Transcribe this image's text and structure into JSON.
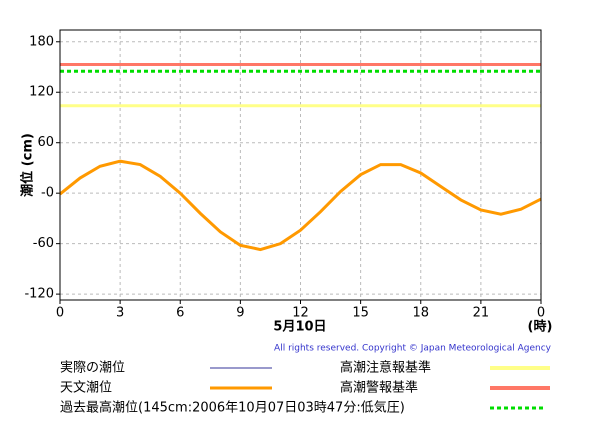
{
  "chart_data": {
    "type": "line",
    "y_label": "潮位 (cm)",
    "x_label": "5月10日",
    "x_unit": "(時)",
    "copyright": "All rights reserved. Copyright © Japan Meteorological Agency",
    "x": [
      0,
      1,
      2,
      3,
      4,
      5,
      6,
      7,
      8,
      9,
      10,
      11,
      12,
      13,
      14,
      15,
      16,
      17,
      18,
      19,
      20,
      21,
      22,
      23,
      24
    ],
    "series": [
      {
        "name": "実際の潮位",
        "color": "#333399",
        "values": [
          null,
          null,
          null,
          null,
          null,
          null,
          null,
          null,
          null,
          null,
          null,
          null,
          null,
          null,
          null,
          null,
          null,
          null,
          null,
          null,
          null,
          null,
          null,
          null,
          null
        ]
      },
      {
        "name": "天文潮位",
        "color": "#ff9900",
        "values": [
          -1,
          18,
          32,
          38,
          34,
          20,
          0,
          -24,
          -46,
          -62,
          -67,
          -60,
          -44,
          -22,
          2,
          22,
          34,
          34,
          24,
          8,
          -8,
          -20,
          -25,
          -19,
          -7
        ]
      }
    ],
    "reference_lines": [
      {
        "name": "高潮注意報基準",
        "color": "#ffff88",
        "value": 104
      },
      {
        "name": "高潮警報基準",
        "color": "#ff7766",
        "value": 153
      },
      {
        "name": "過去最高潮位(145cm:2006年10月07日03時47分:低気圧)",
        "color": "#00dd00",
        "value": 145,
        "dashed": true
      }
    ],
    "xlim": [
      0,
      24
    ],
    "xticks": [
      0,
      3,
      6,
      9,
      12,
      15,
      18,
      21,
      {
        "value": 24,
        "label": "0"
      }
    ],
    "ylim": [
      -127,
      194
    ],
    "yticks": [
      {
        "value": -120,
        "label": "-120"
      },
      {
        "value": -60,
        "label": "-60"
      },
      {
        "value": 0,
        "label": "-0"
      },
      60,
      120,
      180
    ],
    "grid": true
  }
}
